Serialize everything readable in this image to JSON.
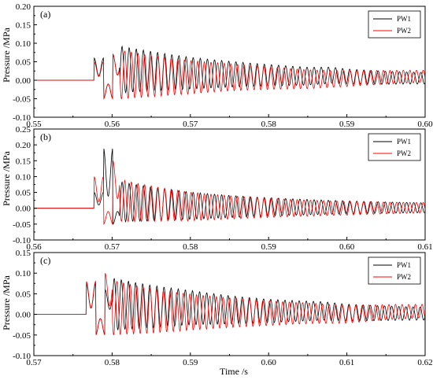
{
  "figure": {
    "ylabel": "Pressure /MPa",
    "xlabel": "Time /s"
  },
  "chart_data": [
    {
      "type": "line",
      "panel_label": "(a)",
      "xlim": [
        0.55,
        0.6
      ],
      "ylim": [
        -0.1,
        0.2
      ],
      "xticks": [
        "0.55",
        "0.56",
        "0.57",
        "0.58",
        "0.59",
        "0.60"
      ],
      "yticks": [
        "-0.10",
        "-0.05",
        "0.00",
        "0.05",
        "0.10",
        "0.15",
        "0.20"
      ],
      "ylabel": "Pressure /MPa",
      "xlabel": "",
      "grid": false,
      "legend": "top-right",
      "onset": 0.5565,
      "series": [
        {
          "name": "PW1",
          "color": "#000000",
          "points": [
            [
              0.55,
              0.0
            ],
            [
              0.5565,
              0.0
            ],
            [
              0.557,
              0.06
            ],
            [
              0.5575,
              -0.05
            ],
            [
              0.558,
              0.07
            ],
            [
              0.56,
              0.055
            ],
            [
              0.565,
              0.045
            ],
            [
              0.57,
              0.035
            ],
            [
              0.575,
              0.03
            ],
            [
              0.58,
              0.025
            ],
            [
              0.585,
              0.02
            ],
            [
              0.588,
              0.025
            ],
            [
              0.59,
              0.018
            ],
            [
              0.595,
              0.012
            ],
            [
              0.6,
              0.01
            ]
          ]
        },
        {
          "name": "PW2",
          "color": "#ff0000",
          "points": [
            [
              0.55,
              0.0
            ],
            [
              0.5565,
              0.0
            ],
            [
              0.5572,
              0.05
            ],
            [
              0.5577,
              -0.05
            ],
            [
              0.5582,
              0.07
            ],
            [
              0.56,
              0.03
            ],
            [
              0.565,
              0.02
            ],
            [
              0.57,
              0.015
            ],
            [
              0.575,
              0.015
            ],
            [
              0.58,
              0.01
            ],
            [
              0.585,
              0.005
            ],
            [
              0.59,
              0.008
            ],
            [
              0.595,
              0.015
            ],
            [
              0.6,
              0.02
            ]
          ]
        }
      ]
    },
    {
      "type": "line",
      "panel_label": "(b)",
      "xlim": [
        0.56,
        0.61
      ],
      "ylim": [
        -0.1,
        0.25
      ],
      "xticks": [
        "0.56",
        "0.57",
        "0.58",
        "0.59",
        "0.60",
        "0.61"
      ],
      "yticks": [
        "-0.10",
        "-0.05",
        "0.00",
        "0.05",
        "0.10",
        "0.15",
        "0.20",
        "0.25"
      ],
      "ylabel": "Pressure /MPa",
      "xlabel": "",
      "grid": false,
      "legend": "top-right",
      "onset": 0.5665,
      "series": [
        {
          "name": "PW1",
          "color": "#000000",
          "points": [
            [
              0.56,
              0.0
            ],
            [
              0.5665,
              0.0
            ],
            [
              0.567,
              0.05
            ],
            [
              0.5675,
              0.19
            ],
            [
              0.568,
              -0.05
            ],
            [
              0.57,
              0.04
            ],
            [
              0.575,
              0.025
            ],
            [
              0.58,
              0.015
            ],
            [
              0.585,
              0.01
            ],
            [
              0.59,
              0.008
            ],
            [
              0.6,
              0.005
            ],
            [
              0.61,
              0.003
            ]
          ]
        },
        {
          "name": "PW2",
          "color": "#ff0000",
          "points": [
            [
              0.56,
              0.0
            ],
            [
              0.5665,
              0.0
            ],
            [
              0.5668,
              0.1
            ],
            [
              0.5672,
              -0.05
            ],
            [
              0.568,
              0.15
            ],
            [
              0.57,
              0.05
            ],
            [
              0.574,
              0.03
            ],
            [
              0.58,
              0.01
            ],
            [
              0.585,
              0.005
            ],
            [
              0.59,
              0.002
            ],
            [
              0.6,
              0.0
            ],
            [
              0.61,
              0.003
            ]
          ]
        }
      ]
    },
    {
      "type": "line",
      "panel_label": "(c)",
      "xlim": [
        0.57,
        0.62
      ],
      "ylim": [
        -0.1,
        0.15
      ],
      "xticks": [
        "0.57",
        "0.58",
        "0.59",
        "0.60",
        "0.61",
        "0.62"
      ],
      "yticks": [
        "-0.10",
        "-0.05",
        "0.00",
        "0.05",
        "0.10",
        "0.15"
      ],
      "ylabel": "Pressure /MPa",
      "xlabel": "Time /s",
      "grid": false,
      "legend": "top-right",
      "onset": 0.5755,
      "series": [
        {
          "name": "PW1",
          "color": "#000000",
          "points": [
            [
              0.57,
              0.0
            ],
            [
              0.5755,
              0.0
            ],
            [
              0.576,
              0.075
            ],
            [
              0.5765,
              -0.05
            ],
            [
              0.577,
              0.06
            ],
            [
              0.58,
              0.045
            ],
            [
              0.585,
              0.035
            ],
            [
              0.59,
              0.03
            ],
            [
              0.595,
              0.02
            ],
            [
              0.6,
              0.015
            ],
            [
              0.607,
              0.015
            ],
            [
              0.61,
              0.008
            ],
            [
              0.615,
              0.005
            ],
            [
              0.62,
              0.003
            ]
          ]
        },
        {
          "name": "PW2",
          "color": "#ff0000",
          "points": [
            [
              0.57,
              0.0
            ],
            [
              0.5755,
              0.0
            ],
            [
              0.5762,
              0.08
            ],
            [
              0.5768,
              -0.05
            ],
            [
              0.5775,
              0.1
            ],
            [
              0.58,
              0.03
            ],
            [
              0.585,
              0.015
            ],
            [
              0.59,
              0.01
            ],
            [
              0.6,
              0.005
            ],
            [
              0.605,
              0.005
            ],
            [
              0.61,
              0.0
            ],
            [
              0.615,
              0.01
            ],
            [
              0.62,
              0.015
            ]
          ]
        }
      ]
    }
  ]
}
